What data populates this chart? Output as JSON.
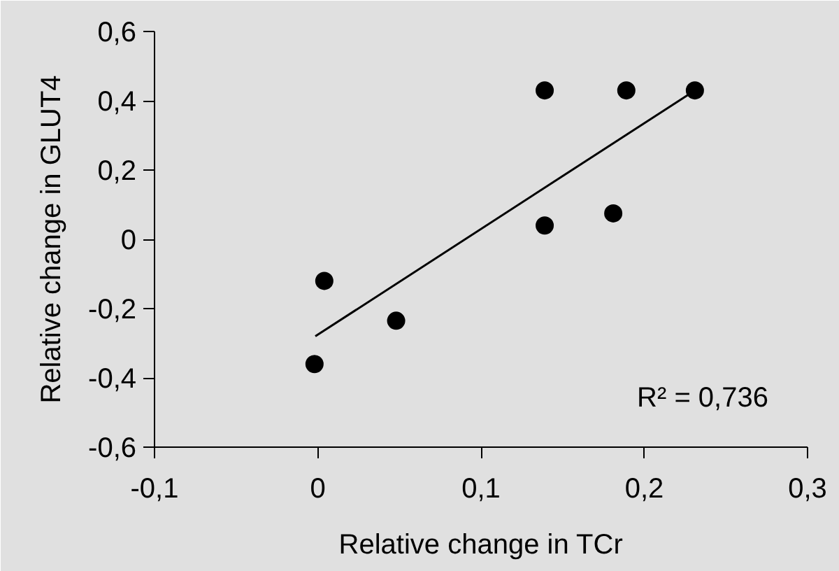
{
  "chart_data": {
    "type": "scatter",
    "xlabel": "Relative change in TCr",
    "ylabel": "Relative change in GLUT4",
    "annotations": [
      "R² = 0,736"
    ],
    "xlim": [
      -0.1,
      0.3
    ],
    "ylim": [
      -0.6,
      0.6
    ],
    "xticks": [
      {
        "value": -0.1,
        "label": "-0,1"
      },
      0,
      {
        "value": 0.1,
        "label": "0,1"
      },
      {
        "value": 0.2,
        "label": "0,2"
      },
      {
        "value": 0.3,
        "label": "0,3"
      }
    ],
    "yticks": [
      {
        "value": -0.6,
        "label": "-0,6"
      },
      {
        "value": -0.4,
        "label": "-0,4"
      },
      {
        "value": -0.2,
        "label": "-0,2"
      },
      0,
      {
        "value": 0.2,
        "label": "0,2"
      },
      {
        "value": 0.4,
        "label": "0,4"
      },
      {
        "value": 0.6,
        "label": "0,6"
      }
    ],
    "series": [
      {
        "marker": "circle",
        "color": "#000000",
        "x": [
          -0.002,
          0.004,
          0.048,
          0.139,
          0.139,
          0.189,
          0.181,
          0.231
        ],
        "values": [
          -0.36,
          -0.12,
          -0.235,
          0.04,
          0.43,
          0.43,
          0.075,
          0.43
        ]
      },
      {
        "type": "line",
        "color": "#000000",
        "x": [
          -0.0015,
          0.231
        ],
        "values": [
          -0.28,
          0.43
        ],
        "line_style": "solid"
      }
    ]
  }
}
